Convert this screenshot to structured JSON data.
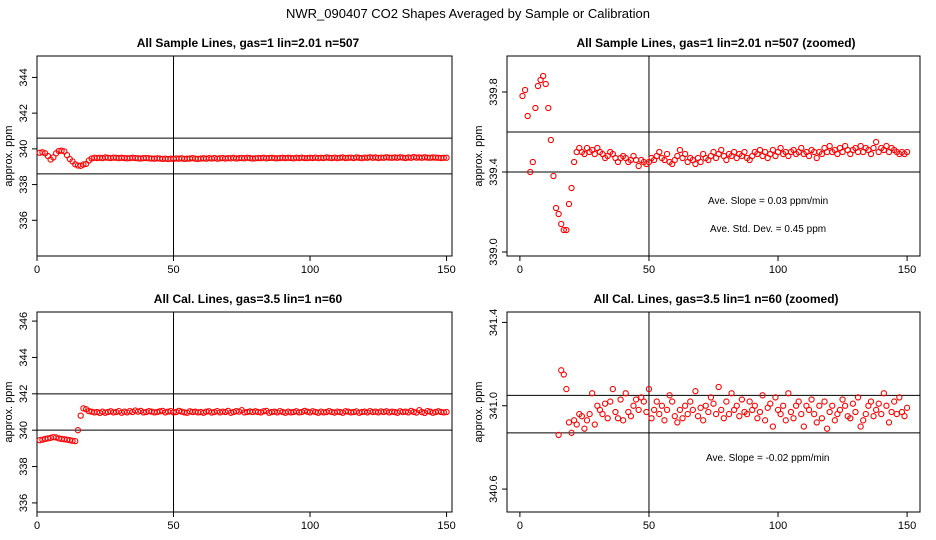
{
  "figure_title": "NWR_090407  CO2 Shapes Averaged by Sample or Calibration",
  "chart_data": [
    {
      "type": "scatter",
      "title": "All Sample Lines, gas=1 lin=2.01 n=507",
      "xlabel": "",
      "ylabel": "approx. ppm",
      "xlim": [
        0,
        152
      ],
      "ylim": [
        334,
        345.2
      ],
      "xticks": [
        0,
        50,
        100,
        150
      ],
      "yticks": [
        336,
        338,
        340,
        342,
        344
      ],
      "hlines": [
        340.6,
        338.6
      ],
      "vline": 50,
      "point_color": "#ff0000",
      "x": [
        1,
        2,
        3,
        4,
        5,
        6,
        7,
        8,
        9,
        10,
        11,
        12,
        13,
        14,
        15,
        16,
        17,
        18,
        19,
        20,
        21,
        22,
        23,
        24,
        25,
        26,
        27,
        28,
        29,
        30,
        31,
        32,
        33,
        34,
        35,
        36,
        37,
        38,
        39,
        40,
        41,
        42,
        43,
        44,
        45,
        46,
        47,
        48,
        49,
        50,
        51,
        52,
        53,
        54,
        55,
        56,
        57,
        58,
        59,
        60,
        61,
        62,
        63,
        64,
        65,
        66,
        67,
        68,
        69,
        70,
        71,
        72,
        73,
        74,
        75,
        76,
        77,
        78,
        79,
        80,
        81,
        82,
        83,
        84,
        85,
        86,
        87,
        88,
        89,
        90,
        91,
        92,
        93,
        94,
        95,
        96,
        97,
        98,
        99,
        100,
        101,
        102,
        103,
        104,
        105,
        106,
        107,
        108,
        109,
        110,
        111,
        112,
        113,
        114,
        115,
        116,
        117,
        118,
        119,
        120,
        121,
        122,
        123,
        124,
        125,
        126,
        127,
        128,
        129,
        130,
        131,
        132,
        133,
        134,
        135,
        136,
        137,
        138,
        139,
        140,
        141,
        142,
        143,
        144,
        145,
        146,
        147,
        148,
        149,
        150
      ],
      "y": [
        339.78,
        339.81,
        339.75,
        339.6,
        339.4,
        339.52,
        339.75,
        339.88,
        339.9,
        339.86,
        339.65,
        339.43,
        339.3,
        339.14,
        339.07,
        339.05,
        339.12,
        339.16,
        339.35,
        339.46,
        339.5,
        339.49,
        339.5,
        339.48,
        339.52,
        339.5,
        339.49,
        339.51,
        339.5,
        339.48,
        339.5,
        339.49,
        339.47,
        339.48,
        339.5,
        339.49,
        339.47,
        339.46,
        339.48,
        339.49,
        339.47,
        339.46,
        339.45,
        339.47,
        339.46,
        339.44,
        339.45,
        339.43,
        339.45,
        339.44,
        339.46,
        339.45,
        339.47,
        339.44,
        339.45,
        339.46,
        339.48,
        339.45,
        339.44,
        339.46,
        339.47,
        339.45,
        339.48,
        339.46,
        339.49,
        339.45,
        339.47,
        339.49,
        339.46,
        339.48,
        339.47,
        339.5,
        339.46,
        339.48,
        339.49,
        339.47,
        339.5,
        339.48,
        339.46,
        339.47,
        339.49,
        339.48,
        339.5,
        339.47,
        339.49,
        339.5,
        339.48,
        339.47,
        339.49,
        339.5,
        339.48,
        339.5,
        339.49,
        339.47,
        339.5,
        339.48,
        339.51,
        339.49,
        339.48,
        339.5,
        339.49,
        339.51,
        339.48,
        339.5,
        339.49,
        339.52,
        339.5,
        339.49,
        339.51,
        339.48,
        339.5,
        339.52,
        339.49,
        339.5,
        339.51,
        339.49,
        339.52,
        339.5,
        339.48,
        339.51,
        339.5,
        339.53,
        339.5,
        339.52,
        339.49,
        339.51,
        339.5,
        339.53,
        339.51,
        339.5,
        339.52,
        339.5,
        339.53,
        339.51,
        339.49,
        339.52,
        339.5,
        339.54,
        339.51,
        339.52,
        339.5,
        339.53,
        339.51,
        339.5,
        339.52,
        339.51,
        339.5,
        339.49,
        339.5,
        339.5
      ]
    },
    {
      "type": "scatter",
      "title": "All Sample Lines, gas=1 lin=2.01 n=507 (zoomed)",
      "xlabel": "",
      "ylabel": "approx. ppm",
      "xlim": [
        -5,
        155
      ],
      "ylim": [
        338.98,
        339.98
      ],
      "xticks": [
        0,
        50,
        100,
        150
      ],
      "yticks": [
        339.0,
        339.4,
        339.8
      ],
      "ytick_labels": [
        "339.0",
        "339.4",
        "339.8"
      ],
      "hlines": [
        339.6,
        339.4
      ],
      "vline": 50,
      "point_color": "#ff0000",
      "annotations": [
        "Ave. Slope =  0.03  ppm/min",
        "Ave. Std. Dev. =  0.45  ppm"
      ],
      "x": [
        1,
        2,
        3,
        4,
        5,
        6,
        7,
        8,
        9,
        10,
        11,
        12,
        13,
        14,
        15,
        16,
        17,
        18,
        19,
        20,
        21,
        22,
        23,
        24,
        25,
        26,
        27,
        28,
        29,
        30,
        31,
        32,
        33,
        34,
        35,
        36,
        37,
        38,
        39,
        40,
        41,
        42,
        43,
        44,
        45,
        46,
        47,
        48,
        49,
        50,
        51,
        52,
        53,
        54,
        55,
        56,
        57,
        58,
        59,
        60,
        61,
        62,
        63,
        64,
        65,
        66,
        67,
        68,
        69,
        70,
        71,
        72,
        73,
        74,
        75,
        76,
        77,
        78,
        79,
        80,
        81,
        82,
        83,
        84,
        85,
        86,
        87,
        88,
        89,
        90,
        91,
        92,
        93,
        94,
        95,
        96,
        97,
        98,
        99,
        100,
        101,
        102,
        103,
        104,
        105,
        106,
        107,
        108,
        109,
        110,
        111,
        112,
        113,
        114,
        115,
        116,
        117,
        118,
        119,
        120,
        121,
        122,
        123,
        124,
        125,
        126,
        127,
        128,
        129,
        130,
        131,
        132,
        133,
        134,
        135,
        136,
        137,
        138,
        139,
        140,
        141,
        142,
        143,
        144,
        145,
        146,
        147,
        148,
        149,
        150
      ],
      "y": [
        339.78,
        339.81,
        339.68,
        339.4,
        339.45,
        339.72,
        339.83,
        339.86,
        339.88,
        339.84,
        339.72,
        339.56,
        339.38,
        339.22,
        339.19,
        339.14,
        339.11,
        339.11,
        339.24,
        339.32,
        339.45,
        339.5,
        339.52,
        339.5,
        339.49,
        339.52,
        339.5,
        339.51,
        339.49,
        339.52,
        339.5,
        339.49,
        339.47,
        339.48,
        339.5,
        339.49,
        339.47,
        339.45,
        339.47,
        339.48,
        339.47,
        339.45,
        339.46,
        339.48,
        339.46,
        339.43,
        339.46,
        339.45,
        339.44,
        339.45,
        339.47,
        339.46,
        339.48,
        339.5,
        339.47,
        339.46,
        339.49,
        339.45,
        339.44,
        339.46,
        339.48,
        339.51,
        339.47,
        339.49,
        339.45,
        339.47,
        339.46,
        339.44,
        339.47,
        339.45,
        339.49,
        339.47,
        339.46,
        339.48,
        339.5,
        339.47,
        339.49,
        339.51,
        339.48,
        339.46,
        339.49,
        339.48,
        339.5,
        339.47,
        339.49,
        339.48,
        339.5,
        339.47,
        339.46,
        339.48,
        339.5,
        339.49,
        339.51,
        339.48,
        339.5,
        339.47,
        339.49,
        339.51,
        339.48,
        339.5,
        339.52,
        339.49,
        339.5,
        339.48,
        339.5,
        339.51,
        339.49,
        339.5,
        339.52,
        339.49,
        339.5,
        339.48,
        339.51,
        339.5,
        339.47,
        339.5,
        339.49,
        339.52,
        339.5,
        339.53,
        339.5,
        339.51,
        339.49,
        339.52,
        339.5,
        339.53,
        339.51,
        339.49,
        339.51,
        339.52,
        339.5,
        339.53,
        339.5,
        339.52,
        339.51,
        339.49,
        339.52,
        339.55,
        339.5,
        339.52,
        339.51,
        339.53,
        339.5,
        339.52,
        339.51,
        339.5,
        339.49,
        339.5,
        339.49,
        339.5
      ]
    },
    {
      "type": "scatter",
      "title": "All Cal. Lines, gas=3.5 lin=1 n=60",
      "xlabel": "",
      "ylabel": "approx. ppm",
      "xlim": [
        0,
        152
      ],
      "ylim": [
        335.5,
        346.5
      ],
      "xticks": [
        0,
        50,
        100,
        150
      ],
      "yticks": [
        336,
        338,
        340,
        342,
        344,
        346
      ],
      "hlines": [
        342.0,
        340.0
      ],
      "vline": 50,
      "point_color": "#ff0000",
      "x": [
        1,
        2,
        3,
        4,
        5,
        6,
        7,
        8,
        9,
        10,
        11,
        12,
        13,
        14,
        15,
        16,
        17,
        18,
        19,
        20,
        21,
        22,
        23,
        24,
        25,
        26,
        27,
        28,
        29,
        30,
        31,
        32,
        33,
        34,
        35,
        36,
        37,
        38,
        39,
        40,
        41,
        42,
        43,
        44,
        45,
        46,
        47,
        48,
        49,
        50,
        51,
        52,
        53,
        54,
        55,
        56,
        57,
        58,
        59,
        60,
        61,
        62,
        63,
        64,
        65,
        66,
        67,
        68,
        69,
        70,
        71,
        72,
        73,
        74,
        75,
        76,
        77,
        78,
        79,
        80,
        81,
        82,
        83,
        84,
        85,
        86,
        87,
        88,
        89,
        90,
        91,
        92,
        93,
        94,
        95,
        96,
        97,
        98,
        99,
        100,
        101,
        102,
        103,
        104,
        105,
        106,
        107,
        108,
        109,
        110,
        111,
        112,
        113,
        114,
        115,
        116,
        117,
        118,
        119,
        120,
        121,
        122,
        123,
        124,
        125,
        126,
        127,
        128,
        129,
        130,
        131,
        132,
        133,
        134,
        135,
        136,
        137,
        138,
        139,
        140,
        141,
        142,
        143,
        144,
        145,
        146,
        147,
        148,
        149,
        150
      ],
      "y": [
        339.45,
        339.48,
        339.52,
        339.55,
        339.58,
        339.62,
        339.6,
        339.55,
        339.52,
        339.5,
        339.48,
        339.45,
        339.42,
        339.4,
        340.0,
        340.8,
        341.2,
        341.15,
        341.05,
        341.02,
        340.98,
        341.0,
        340.95,
        341.02,
        340.96,
        341.0,
        341.04,
        340.98,
        341.0,
        341.05,
        340.96,
        341.02,
        340.98,
        341.05,
        341.0,
        341.08,
        341.02,
        341.06,
        340.98,
        341.0,
        341.05,
        341.02,
        340.98,
        341.0,
        341.04,
        341.06,
        340.98,
        341.02,
        341.05,
        340.98,
        341.0,
        341.06,
        341.02,
        340.98,
        340.96,
        341.04,
        341.0,
        341.02,
        340.98,
        341.0,
        340.96,
        341.02,
        341.04,
        340.97,
        341.0,
        341.05,
        340.98,
        341.02,
        341.0,
        341.06,
        340.96,
        341.0,
        341.05,
        341.02,
        341.1,
        340.98,
        341.0,
        341.03,
        341.0,
        341.04,
        341.0,
        340.98,
        341.04,
        341.06,
        340.96,
        341.0,
        341.02,
        340.98,
        341.05,
        341.0,
        340.96,
        341.02,
        340.98,
        341.0,
        341.04,
        340.98,
        341.0,
        341.06,
        341.02,
        340.98,
        341.04,
        341.0,
        340.96,
        341.02,
        340.98,
        341.0,
        341.05,
        341.0,
        340.97,
        341.02,
        341.0,
        340.96,
        341.04,
        341.02,
        340.98,
        341.0,
        341.03,
        340.96,
        341.0,
        341.02,
        340.98,
        341.05,
        341.0,
        341.02,
        340.98,
        341.03,
        341.0,
        341.04,
        340.98,
        341.02,
        341.0,
        340.96,
        341.04,
        341.0,
        341.02,
        340.98,
        341.06,
        341.0,
        340.97,
        341.1,
        341.0,
        340.95,
        341.05,
        341.02,
        340.96,
        341.0,
        341.04,
        341.0,
        340.98,
        341.0
      ]
    },
    {
      "type": "scatter",
      "title": "All Cal. Lines, gas=3.5 lin=1 n=60 (zoomed)",
      "xlabel": "",
      "ylabel": "approx. ppm",
      "xlim": [
        -5,
        155
      ],
      "ylim": [
        340.49,
        341.45
      ],
      "xticks": [
        0,
        50,
        100,
        150
      ],
      "yticks": [
        340.6,
        341.0,
        341.4
      ],
      "ytick_labels": [
        "340.6",
        "341.0",
        "341.4"
      ],
      "hlines": [
        341.05,
        340.87
      ],
      "vline": 50,
      "point_color": "#ff0000",
      "annotations": [
        "Ave. Slope =  -0.02  ppm/min"
      ],
      "x": [
        15,
        16,
        17,
        18,
        19,
        20,
        21,
        22,
        23,
        24,
        25,
        26,
        27,
        28,
        29,
        30,
        31,
        32,
        33,
        34,
        35,
        36,
        37,
        38,
        39,
        40,
        41,
        42,
        43,
        44,
        45,
        46,
        47,
        48,
        49,
        50,
        51,
        52,
        53,
        54,
        55,
        56,
        57,
        58,
        59,
        60,
        61,
        62,
        63,
        64,
        65,
        66,
        67,
        68,
        69,
        70,
        71,
        72,
        73,
        74,
        75,
        76,
        77,
        78,
        79,
        80,
        81,
        82,
        83,
        84,
        85,
        86,
        87,
        88,
        89,
        90,
        91,
        92,
        93,
        94,
        95,
        96,
        97,
        98,
        99,
        100,
        101,
        102,
        103,
        104,
        105,
        106,
        107,
        108,
        109,
        110,
        111,
        112,
        113,
        114,
        115,
        116,
        117,
        118,
        119,
        120,
        121,
        122,
        123,
        124,
        125,
        126,
        127,
        128,
        129,
        130,
        131,
        132,
        133,
        134,
        135,
        136,
        137,
        138,
        139,
        140,
        141,
        142,
        143,
        144,
        145,
        146,
        147,
        148,
        149,
        150
      ],
      "y": [
        340.86,
        341.17,
        341.15,
        341.08,
        340.92,
        340.87,
        340.93,
        340.91,
        340.96,
        340.95,
        340.89,
        340.93,
        340.96,
        341.06,
        340.91,
        341.0,
        340.98,
        340.96,
        341.01,
        340.94,
        341.02,
        341.08,
        340.97,
        340.94,
        341.03,
        340.93,
        341.06,
        340.97,
        340.95,
        341.0,
        341.03,
        340.98,
        341.04,
        341.02,
        340.97,
        341.08,
        340.94,
        340.98,
        341.02,
        340.96,
        341.0,
        340.93,
        340.98,
        341.05,
        341.02,
        340.95,
        340.92,
        340.98,
        340.94,
        341.0,
        340.96,
        341.02,
        340.98,
        341.07,
        340.95,
        340.99,
        340.93,
        341.0,
        340.97,
        341.04,
        341.01,
        340.96,
        341.09,
        340.98,
        340.94,
        341.02,
        340.96,
        341.06,
        340.98,
        341.0,
        340.95,
        341.03,
        340.97,
        340.96,
        341.02,
        340.98,
        341.0,
        340.94,
        340.97,
        341.05,
        340.93,
        340.99,
        341.01,
        340.9,
        341.04,
        340.98,
        340.96,
        341.0,
        340.93,
        341.06,
        340.97,
        340.94,
        341.0,
        341.02,
        340.96,
        340.9,
        341.0,
        340.98,
        341.03,
        340.96,
        340.92,
        341.0,
        340.94,
        341.02,
        340.89,
        340.97,
        341.0,
        340.93,
        340.96,
        340.98,
        341.03,
        341.0,
        340.95,
        340.94,
        341.01,
        340.97,
        341.04,
        340.9,
        340.93,
        340.96,
        341.0,
        341.02,
        340.95,
        340.98,
        341.01,
        340.96,
        341.06,
        341.0,
        340.92,
        340.97,
        341.02,
        340.96,
        341.04,
        340.97,
        340.95,
        340.99
      ]
    }
  ]
}
